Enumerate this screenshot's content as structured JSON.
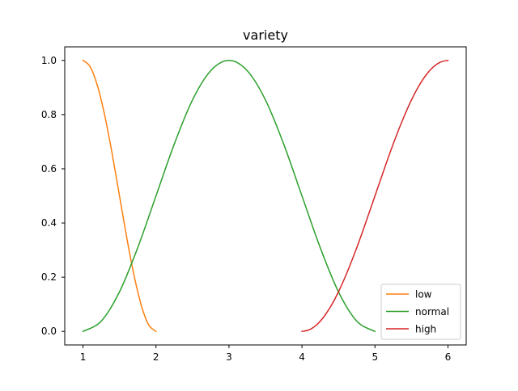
{
  "chart_data": {
    "type": "line",
    "title": "variety",
    "xlabel": "",
    "ylabel": "",
    "xlim": [
      0.75,
      6.25
    ],
    "ylim": [
      -0.05,
      1.05
    ],
    "x_ticks": [
      1,
      2,
      3,
      4,
      5,
      6
    ],
    "x_tick_labels": [
      "1",
      "2",
      "3",
      "4",
      "5",
      "6"
    ],
    "y_ticks": [
      0.0,
      0.2,
      0.4,
      0.6,
      0.8,
      1.0
    ],
    "y_tick_labels": [
      "0.0",
      "0.2",
      "0.4",
      "0.6",
      "0.8",
      "1.0"
    ],
    "grid": false,
    "legend_position": "lower right",
    "series": [
      {
        "name": "low",
        "color": "#ff7f0e",
        "x": [
          1.0,
          1.1,
          1.2,
          1.3,
          1.4,
          1.5,
          1.6,
          1.7,
          1.8,
          1.9,
          2.0
        ],
        "y": [
          1.0,
          0.976,
          0.905,
          0.794,
          0.655,
          0.5,
          0.345,
          0.206,
          0.095,
          0.024,
          0.0
        ]
      },
      {
        "name": "normal",
        "color": "#2ca02c",
        "x": [
          1.0,
          1.25,
          1.5,
          1.75,
          2.0,
          2.25,
          2.5,
          2.75,
          3.0,
          3.25,
          3.5,
          3.75,
          4.0,
          4.25,
          4.5,
          4.75,
          5.0
        ],
        "y": [
          0.0,
          0.038,
          0.146,
          0.309,
          0.5,
          0.691,
          0.854,
          0.962,
          1.0,
          0.962,
          0.854,
          0.691,
          0.5,
          0.309,
          0.146,
          0.038,
          0.0
        ]
      },
      {
        "name": "high",
        "color": "#d62728",
        "x": [
          4.0,
          4.1,
          4.2,
          4.3,
          4.4,
          4.5,
          4.6,
          4.7,
          4.8,
          4.9,
          5.0,
          5.1,
          5.2,
          5.3,
          5.4,
          5.5,
          5.6,
          5.7,
          5.8,
          5.9,
          6.0
        ],
        "y": [
          0.0,
          0.006,
          0.024,
          0.054,
          0.095,
          0.146,
          0.206,
          0.273,
          0.345,
          0.422,
          0.5,
          0.578,
          0.655,
          0.727,
          0.794,
          0.854,
          0.905,
          0.946,
          0.976,
          0.994,
          1.0
        ]
      }
    ]
  }
}
